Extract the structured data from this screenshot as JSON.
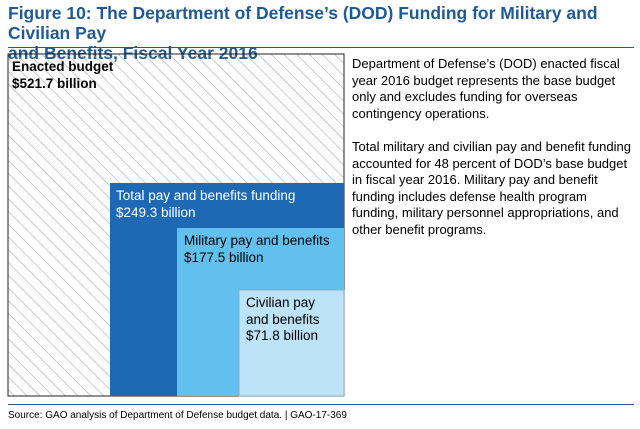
{
  "title": {
    "line1": "Figure 10: The Department of Defense’s (DOD) Funding for Military and Civilian Pay",
    "line2": "and Benefits, Fiscal Year 2016"
  },
  "notes": {
    "note1": "Department of Defense’s (DOD) enacted fiscal year 2016 budget represents the base budget only and excludes funding for overseas contingency operations.",
    "note2": "Total military and civilian pay and benefit funding accounted for 48 percent of DOD’s base budget in fiscal year 2016. Military pay and benefit funding includes defense health program funding, military personnel appropriations, and other benefit programs."
  },
  "source": "Source: GAO analysis of Department of Defense budget data.  |  GAO-17-369",
  "colors": {
    "title": "#1f5a96",
    "hatch": "#aaaaaa",
    "total": "#1d69b3",
    "military": "#62c0ee",
    "civilian": "#bde3f8"
  },
  "chart_data": {
    "type": "nested-area",
    "unit": "billion",
    "categories": [
      "Enacted budget",
      "Total pay and benefits funding",
      "Military pay and benefits",
      "Civilian pay and benefits"
    ],
    "values": [
      521.7,
      249.3,
      177.5,
      71.8
    ],
    "labels": {
      "enacted": {
        "line1": "Enacted budget",
        "line2": "$521.7 billion"
      },
      "total": {
        "line1": "Total pay and benefits funding",
        "line2": "$249.3 billion"
      },
      "military": {
        "line1": "Military pay and benefits",
        "line2": "$177.5 billion"
      },
      "civilian": {
        "line1": "Civilian pay",
        "line2": "and benefits",
        "line3": "$71.8 billion"
      }
    }
  }
}
